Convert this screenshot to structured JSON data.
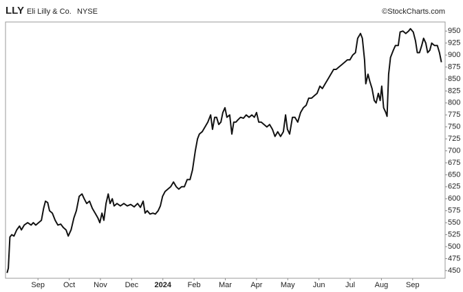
{
  "chart_data": {
    "type": "line",
    "symbol": "LLY",
    "title": "Eli Lilly & Co.",
    "exchange": "NYSE",
    "source": "©StockCharts.com",
    "grid": false,
    "xlim": [
      -0.04,
      14.04
    ],
    "xticks": [
      {
        "value": 1,
        "label": "Sep"
      },
      {
        "value": 2,
        "label": "Oct"
      },
      {
        "value": 3,
        "label": "Nov"
      },
      {
        "value": 4,
        "label": "Dec"
      },
      {
        "value": 5,
        "label": "2024"
      },
      {
        "value": 6,
        "label": "Feb"
      },
      {
        "value": 7,
        "label": "Mar"
      },
      {
        "value": 8,
        "label": "Apr"
      },
      {
        "value": 9,
        "label": "May"
      },
      {
        "value": 10,
        "label": "Jun"
      },
      {
        "value": 11,
        "label": "Jul"
      },
      {
        "value": 12,
        "label": "Aug"
      },
      {
        "value": 13,
        "label": "Sep"
      }
    ],
    "ylim": [
      434,
      969
    ],
    "yticks": [
      450,
      475,
      500,
      525,
      550,
      575,
      600,
      625,
      650,
      675,
      700,
      725,
      750,
      775,
      800,
      825,
      850,
      875,
      900,
      925,
      950
    ],
    "color": "#111111",
    "x": [
      0.01,
      0.05,
      0.1,
      0.16,
      0.23,
      0.32,
      0.41,
      0.47,
      0.56,
      0.67,
      0.78,
      0.85,
      0.93,
      1.02,
      1.11,
      1.18,
      1.24,
      1.31,
      1.37,
      1.46,
      1.55,
      1.64,
      1.73,
      1.81,
      1.9,
      1.97,
      2.06,
      2.15,
      2.23,
      2.32,
      2.41,
      2.48,
      2.56,
      2.65,
      2.74,
      2.83,
      2.92,
      2.98,
      3.05,
      3.11,
      3.18,
      3.25,
      3.31,
      3.38,
      3.44,
      3.53,
      3.64,
      3.75,
      3.86,
      3.97,
      4.08,
      4.19,
      4.28,
      4.37,
      4.43,
      4.5,
      4.59,
      4.68,
      4.76,
      4.85,
      4.92,
      4.99,
      5.07,
      5.16,
      5.25,
      5.34,
      5.43,
      5.51,
      5.6,
      5.69,
      5.78,
      5.87,
      5.95,
      6.04,
      6.11,
      6.17,
      6.26,
      6.35,
      6.44,
      6.53,
      6.59,
      6.66,
      6.72,
      6.79,
      6.86,
      6.92,
      6.99,
      7.05,
      7.14,
      7.21,
      7.27,
      7.34,
      7.41,
      7.49,
      7.58,
      7.67,
      7.76,
      7.85,
      7.93,
      8.0,
      8.07,
      8.15,
      8.24,
      8.33,
      8.42,
      8.51,
      8.59,
      8.68,
      8.77,
      8.86,
      8.93,
      8.99,
      9.06,
      9.15,
      9.23,
      9.32,
      9.41,
      9.5,
      9.59,
      9.67,
      9.76,
      9.85,
      9.94,
      10.03,
      10.11,
      10.2,
      10.29,
      10.38,
      10.47,
      10.55,
      10.64,
      10.73,
      10.82,
      10.91,
      10.99,
      11.08,
      11.17,
      11.24,
      11.33,
      11.39,
      11.46,
      11.5,
      11.57,
      11.63,
      11.7,
      11.77,
      11.83,
      11.9,
      11.96,
      12.01,
      12.07,
      12.14,
      12.18,
      12.23,
      12.29,
      12.38,
      12.45,
      12.54,
      12.6,
      12.69,
      12.78,
      12.87,
      12.93,
      13.02,
      13.09,
      13.15,
      13.22,
      13.29,
      13.35,
      13.42,
      13.48,
      13.55,
      13.61,
      13.7,
      13.79,
      13.86,
      13.92
    ],
    "values": [
      445,
      455,
      520,
      525,
      522,
      535,
      543,
      535,
      545,
      550,
      545,
      550,
      545,
      550,
      555,
      580,
      595,
      592,
      575,
      570,
      555,
      545,
      547,
      540,
      535,
      522,
      535,
      560,
      575,
      605,
      610,
      600,
      590,
      595,
      580,
      570,
      560,
      550,
      570,
      555,
      590,
      610,
      590,
      600,
      585,
      590,
      585,
      590,
      585,
      588,
      583,
      590,
      582,
      595,
      570,
      575,
      568,
      570,
      568,
      575,
      585,
      605,
      615,
      620,
      625,
      635,
      625,
      620,
      625,
      625,
      640,
      640,
      660,
      700,
      725,
      735,
      740,
      750,
      760,
      775,
      745,
      770,
      770,
      755,
      760,
      780,
      790,
      770,
      775,
      735,
      760,
      760,
      765,
      770,
      768,
      775,
      770,
      775,
      770,
      780,
      760,
      760,
      755,
      750,
      755,
      745,
      730,
      740,
      730,
      740,
      775,
      745,
      735,
      770,
      770,
      760,
      780,
      790,
      795,
      810,
      810,
      815,
      820,
      835,
      830,
      840,
      850,
      860,
      870,
      870,
      875,
      880,
      885,
      890,
      890,
      900,
      905,
      935,
      945,
      935,
      890,
      840,
      860,
      845,
      830,
      805,
      800,
      820,
      805,
      835,
      790,
      780,
      772,
      860,
      895,
      910,
      920,
      920,
      948,
      950,
      945,
      950,
      955,
      948,
      930,
      905,
      905,
      920,
      935,
      925,
      905,
      910,
      925,
      920,
      920,
      905,
      885
    ]
  }
}
